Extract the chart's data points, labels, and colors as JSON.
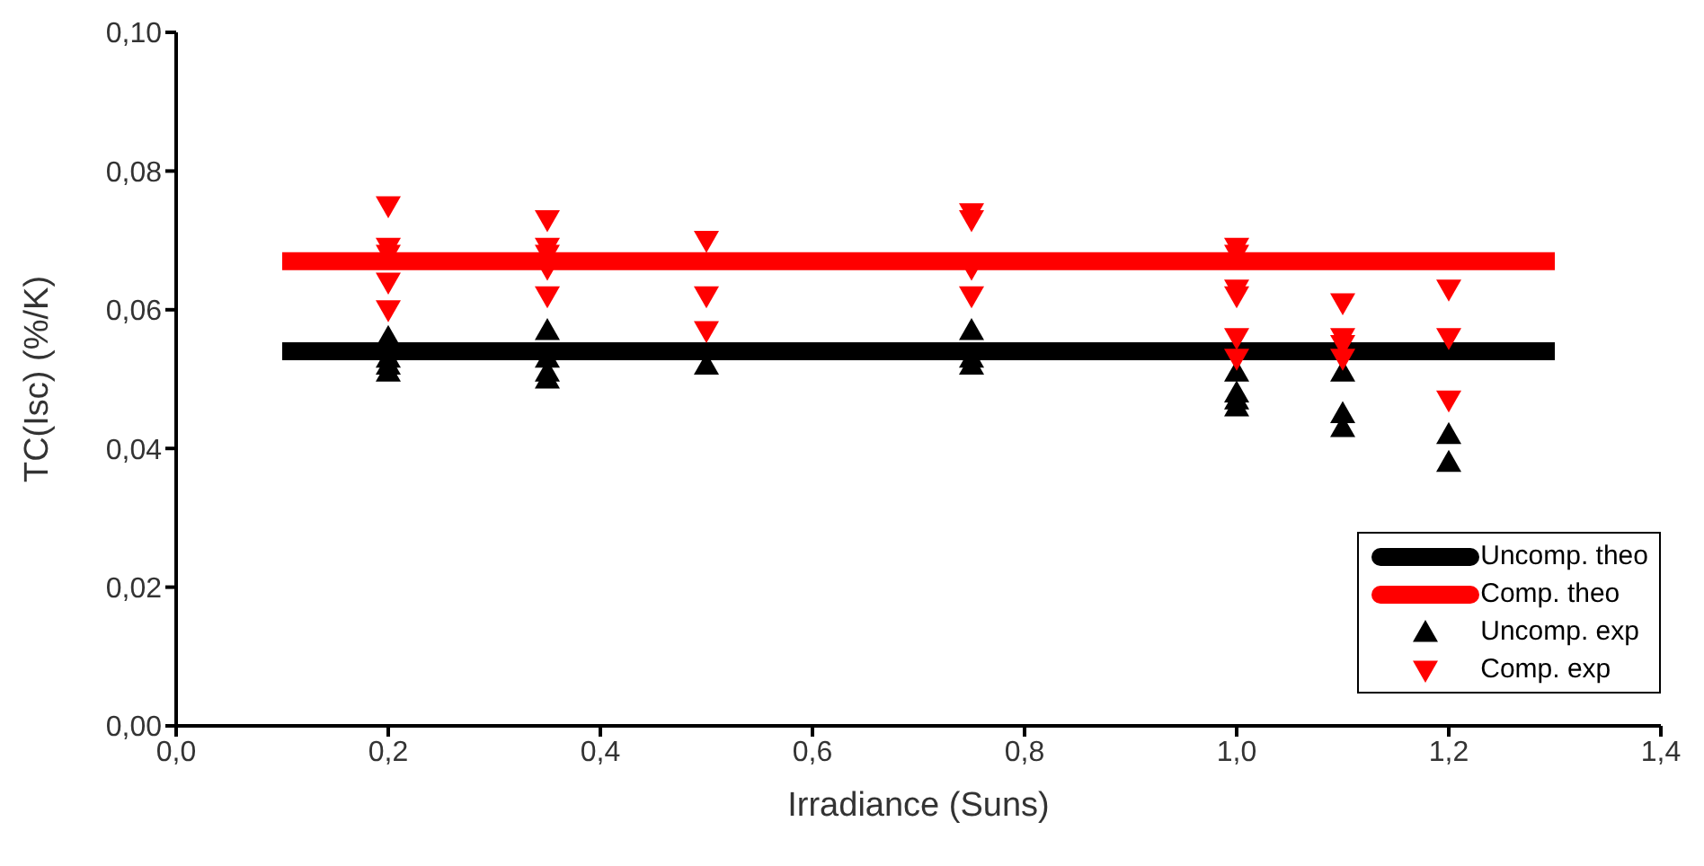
{
  "chart_data": {
    "type": "scatter",
    "xlabel": "Irradiance (Suns)",
    "ylabel": "TC(Isc) (%/K)",
    "xlim": [
      0,
      1.4
    ],
    "xticks": [
      {
        "value": 0,
        "label": "0,0"
      },
      {
        "value": 0.2,
        "label": "0,2"
      },
      {
        "value": 0.4,
        "label": "0,4"
      },
      {
        "value": 0.6,
        "label": "0,6"
      },
      {
        "value": 0.8,
        "label": "0,8"
      },
      {
        "value": 1.0,
        "label": "1,0"
      },
      {
        "value": 1.2,
        "label": "1,2"
      },
      {
        "value": 1.4,
        "label": "1,4"
      }
    ],
    "ylim": [
      0,
      0.1
    ],
    "yticks": [
      {
        "value": 0,
        "label": "0,00"
      },
      {
        "value": 0.02,
        "label": "0,02"
      },
      {
        "value": 0.04,
        "label": "0,04"
      },
      {
        "value": 0.06,
        "label": "0,06"
      },
      {
        "value": 0.08,
        "label": "0,08"
      },
      {
        "value": 0.1,
        "label": "0,10"
      }
    ],
    "grid": false,
    "legend": "bottom right",
    "series": [
      {
        "name": "Uncomp. theo",
        "type": "line",
        "color": "#000000",
        "x": [
          0.1,
          1.3
        ],
        "values": [
          0.054,
          0.054
        ],
        "marker": "none"
      },
      {
        "name": "Comp. theo",
        "type": "line",
        "color": "#ff0000",
        "x": [
          0.1,
          1.3
        ],
        "values": [
          0.067,
          0.067
        ],
        "marker": "none"
      },
      {
        "name": "Uncomp. exp",
        "color": "#000000",
        "marker": "triangle",
        "x": [
          0.2,
          0.2,
          0.2,
          0.2,
          0.35,
          0.35,
          0.35,
          0.35,
          0.5,
          0.75,
          0.75,
          0.75,
          1.0,
          1.0,
          1.0,
          1.0,
          1.1,
          1.1,
          1.1,
          1.2,
          1.2
        ],
        "values": [
          0.056,
          0.053,
          0.052,
          0.051,
          0.057,
          0.053,
          0.051,
          0.05,
          0.052,
          0.057,
          0.053,
          0.052,
          0.051,
          0.048,
          0.047,
          0.046,
          0.051,
          0.045,
          0.043,
          0.042,
          0.038
        ]
      },
      {
        "name": "Comp. exp",
        "color": "#ff0000",
        "marker": "triangle-down",
        "x": [
          0.2,
          0.2,
          0.2,
          0.2,
          0.2,
          0.35,
          0.35,
          0.35,
          0.35,
          0.35,
          0.5,
          0.5,
          0.5,
          0.75,
          0.75,
          0.75,
          0.75,
          1.0,
          1.0,
          1.0,
          1.0,
          1.0,
          1.0,
          1.1,
          1.1,
          1.1,
          1.1,
          1.2,
          1.2,
          1.2
        ],
        "values": [
          0.075,
          0.069,
          0.068,
          0.064,
          0.06,
          0.073,
          0.069,
          0.068,
          0.066,
          0.062,
          0.07,
          0.062,
          0.057,
          0.074,
          0.073,
          0.066,
          0.062,
          0.069,
          0.068,
          0.063,
          0.062,
          0.056,
          0.053,
          0.061,
          0.056,
          0.055,
          0.053,
          0.063,
          0.056,
          0.047
        ]
      }
    ]
  }
}
